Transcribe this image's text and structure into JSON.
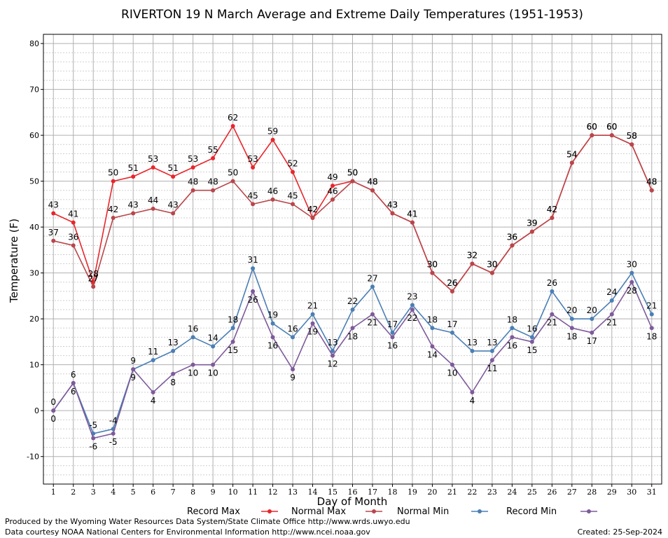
{
  "colors": {
    "record_max": "#e8262c",
    "normal_max": "#b9464b",
    "normal_min": "#4a7fb5",
    "record_min": "#7e5a9b",
    "grid": "#b0b0b0"
  },
  "footer": {
    "produced_by": "Produced by the Wyoming Water Resources Data System/State Climate Office http://www.wrds.uwyo.edu",
    "courtesy": "Data courtesy NOAA National Centers for Environmental Information http://www.ncei.noaa.gov",
    "created": "Created:  25-Sep-2024"
  },
  "chart_data": {
    "type": "line",
    "title": "RIVERTON 19 N March Average and Extreme Daily Temperatures (1951-1953)",
    "xlabel": "Day of Month",
    "ylabel": "Temperature (F)",
    "xlim": [
      0.5,
      31.5
    ],
    "ylim": [
      -16,
      82
    ],
    "yticks": [
      -10,
      0,
      10,
      20,
      30,
      40,
      50,
      60,
      70,
      80
    ],
    "x": [
      1,
      2,
      3,
      4,
      5,
      6,
      7,
      8,
      9,
      10,
      11,
      12,
      13,
      14,
      15,
      16,
      17,
      18,
      19,
      20,
      21,
      22,
      23,
      24,
      25,
      26,
      27,
      28,
      29,
      30,
      31
    ],
    "grid": true,
    "legend_position": "bottom",
    "series": [
      {
        "name": "Record Max",
        "color_key": "record_max",
        "values": [
          43,
          41,
          28,
          50,
          51,
          53,
          51,
          53,
          55,
          62,
          53,
          59,
          52,
          42,
          49,
          50,
          48,
          43,
          41,
          30,
          26,
          32,
          30,
          36,
          39,
          42,
          54,
          60,
          60,
          58,
          48
        ]
      },
      {
        "name": "Normal Max",
        "color_key": "normal_max",
        "values": [
          37,
          36,
          27,
          42,
          43,
          44,
          43,
          48,
          48,
          50,
          45,
          46,
          45,
          42,
          46,
          50,
          48,
          43,
          41,
          30,
          26,
          32,
          30,
          36,
          39,
          42,
          54,
          60,
          60,
          58,
          48
        ]
      },
      {
        "name": "Normal Min",
        "color_key": "normal_min",
        "values": [
          0,
          6,
          -5,
          -4,
          9,
          11,
          13,
          16,
          14,
          18,
          31,
          19,
          16,
          21,
          13,
          22,
          27,
          17,
          23,
          18,
          17,
          13,
          13,
          18,
          16,
          26,
          20,
          20,
          24,
          30,
          21
        ]
      },
      {
        "name": "Record Min",
        "color_key": "record_min",
        "values": [
          0,
          6,
          -6,
          -5,
          9,
          4,
          8,
          10,
          10,
          15,
          26,
          16,
          9,
          19,
          12,
          18,
          21,
          16,
          22,
          14,
          10,
          4,
          11,
          16,
          15,
          21,
          18,
          17,
          21,
          28,
          18
        ]
      }
    ]
  }
}
